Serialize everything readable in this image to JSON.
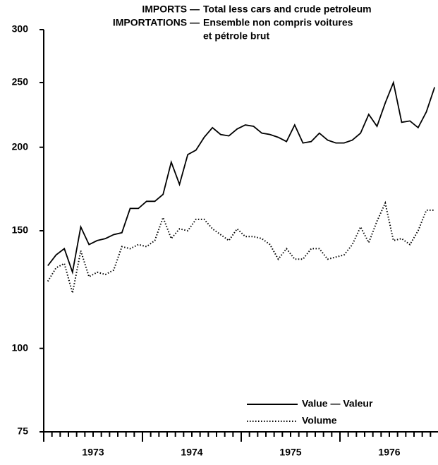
{
  "chart_data": {
    "type": "line",
    "title": [
      [
        "IMPORTS —",
        "Total less cars and crude petroleum"
      ],
      [
        "IMPORTATIONS —",
        "Ensemble non compris voitures"
      ],
      [
        "et pétrole brut"
      ]
    ],
    "categories": [
      null,
      null,
      null,
      null,
      null,
      "1973",
      null,
      null,
      null,
      null,
      null,
      null,
      null,
      null,
      null,
      null,
      null,
      "1974",
      null,
      null,
      null,
      null,
      null,
      null,
      null,
      null,
      null,
      null,
      null,
      "1975",
      null,
      null,
      null,
      null,
      null,
      null,
      null,
      null,
      null,
      null,
      null,
      "1976",
      null,
      null,
      null,
      null,
      null,
      null
    ],
    "series": [
      {
        "name": "Value — Valeur",
        "color": "#000000",
        "line_style": "solid",
        "values": [
          133,
          138,
          141,
          130,
          152,
          143,
          145,
          146,
          148,
          149,
          162,
          162,
          166,
          166,
          170,
          190,
          176,
          195,
          198,
          207,
          214,
          209,
          208,
          213,
          216,
          215,
          210,
          209,
          207,
          204,
          216,
          203,
          204,
          210,
          205,
          203,
          203,
          205,
          210,
          224,
          215,
          233,
          250,
          218,
          219,
          214,
          226,
          246
        ]
      },
      {
        "name": "Volume",
        "color": "#000000",
        "line_style": "dotted",
        "values": [
          126,
          132,
          134,
          121,
          140,
          128,
          130,
          129,
          131,
          142,
          141,
          143,
          142,
          145,
          157,
          146,
          151,
          150,
          156,
          156,
          151,
          148,
          145,
          151,
          147,
          147,
          146,
          143,
          136,
          141,
          136,
          136,
          141,
          141,
          136,
          137,
          138,
          143,
          152,
          144,
          155,
          165,
          145,
          146,
          143,
          150,
          161,
          161
        ]
      }
    ],
    "ylim": [
      75,
      300
    ],
    "yticks": [
      75,
      100,
      150,
      200,
      250,
      300
    ],
    "log_scale": true,
    "grid": false,
    "legend": "lower right"
  }
}
